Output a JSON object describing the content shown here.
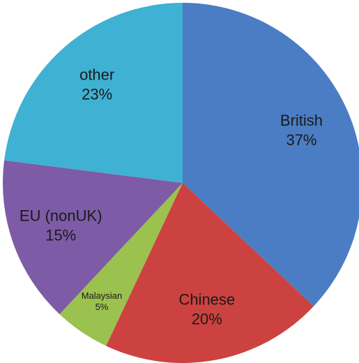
{
  "chart_data": {
    "type": "pie",
    "categories": [
      "British",
      "Chinese",
      "Malaysian",
      "EU (nonUK)",
      "other"
    ],
    "values": [
      37,
      20,
      5,
      15,
      23
    ],
    "value_labels": [
      "37%",
      "20%",
      "5%",
      "15%",
      "23%"
    ],
    "colors": [
      "#4a7dc4",
      "#cc4240",
      "#9bc14e",
      "#7d5ba6",
      "#3fb1d3"
    ]
  }
}
